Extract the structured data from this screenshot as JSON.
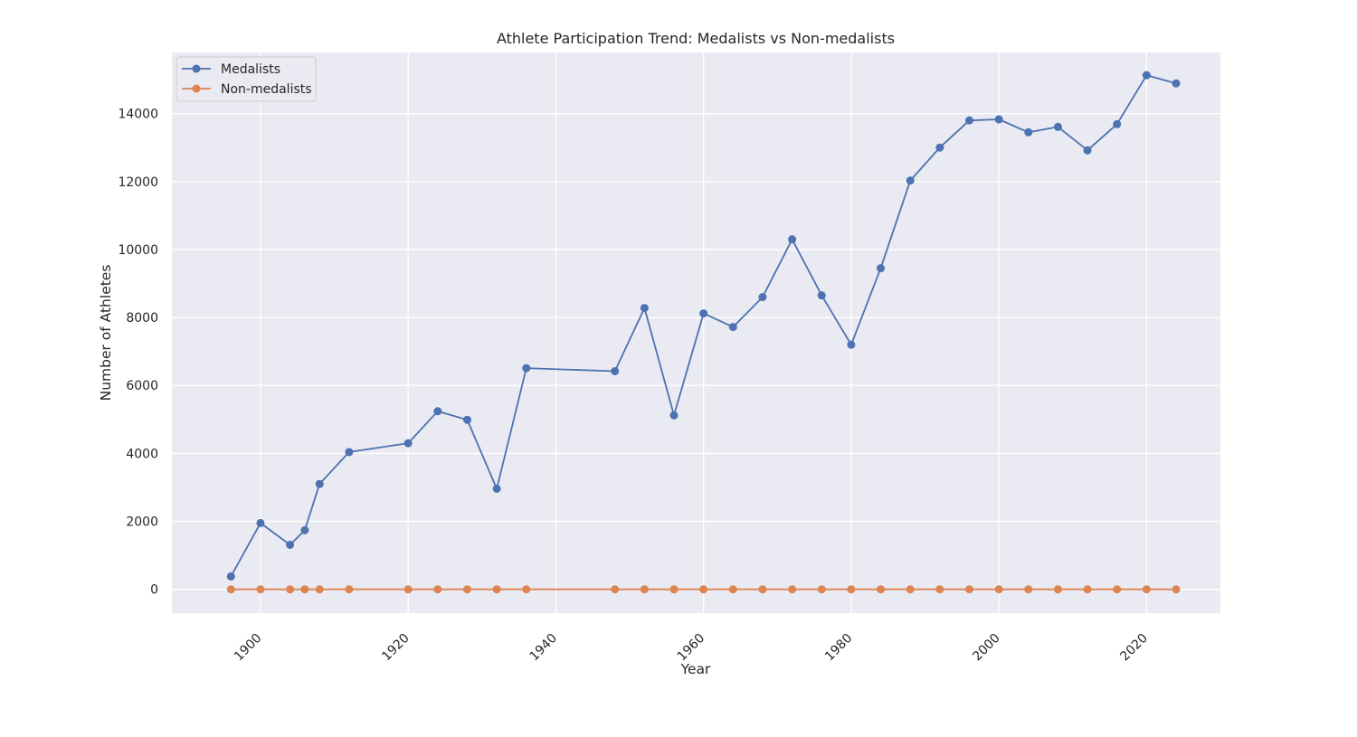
{
  "chart_data": {
    "type": "line",
    "title": "Athlete Participation Trend: Medalists vs Non-medalists",
    "xlabel": "Year",
    "ylabel": "Number of Athletes",
    "xlim": [
      1888,
      2030
    ],
    "ylim": [
      -700,
      15800
    ],
    "x_ticks": [
      1900,
      1920,
      1940,
      1960,
      1980,
      2000,
      2020
    ],
    "y_ticks": [
      0,
      2000,
      4000,
      6000,
      8000,
      10000,
      12000,
      14000
    ],
    "grid": true,
    "legend_position": "top-left",
    "x": [
      1896,
      1900,
      1904,
      1906,
      1908,
      1912,
      1920,
      1924,
      1928,
      1932,
      1936,
      1948,
      1952,
      1956,
      1960,
      1964,
      1968,
      1972,
      1976,
      1980,
      1984,
      1988,
      1992,
      1996,
      2000,
      2004,
      2008,
      2012,
      2016,
      2020,
      2024
    ],
    "series": [
      {
        "name": "Medalists",
        "color": "#4c72b0",
        "values": [
          380,
          1950,
          1310,
          1740,
          3100,
          4040,
          4300,
          5240,
          4990,
          2960,
          6510,
          6420,
          8280,
          5120,
          8120,
          7720,
          8600,
          10300,
          8650,
          7200,
          9450,
          12030,
          13000,
          13800,
          13830,
          13450,
          13610,
          12920,
          13690,
          15130,
          14890
        ]
      },
      {
        "name": "Non-medalists",
        "color": "#dd8452",
        "values": [
          0,
          0,
          0,
          0,
          0,
          0,
          0,
          0,
          0,
          0,
          0,
          0,
          0,
          0,
          0,
          0,
          0,
          0,
          0,
          0,
          0,
          0,
          0,
          0,
          0,
          0,
          0,
          0,
          0,
          0,
          0
        ]
      }
    ]
  }
}
